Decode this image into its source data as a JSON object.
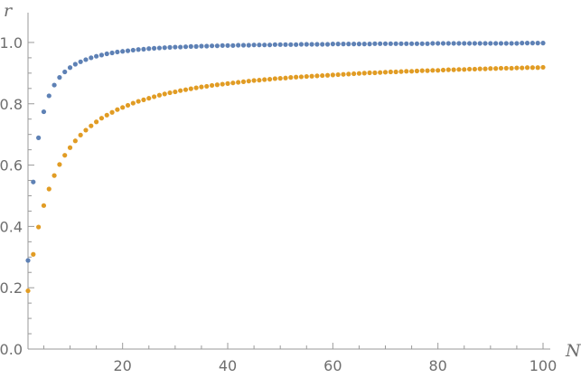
{
  "chart_data": {
    "type": "scatter",
    "title": "",
    "xlabel": "N",
    "ylabel": "r",
    "xlim": [
      2,
      100
    ],
    "ylim": [
      0,
      1.05
    ],
    "x_ticks": [
      20,
      40,
      60,
      80,
      100
    ],
    "x_tick_labels": [
      "20",
      "40",
      "60",
      "80",
      "100"
    ],
    "y_ticks": [
      0.0,
      0.2,
      0.4,
      0.6,
      0.8,
      1.0
    ],
    "y_tick_labels": [
      "0.0",
      "0.2",
      "0.4",
      "0.6",
      "0.8",
      "1.0"
    ],
    "grid": false,
    "legend": "none",
    "series": [
      {
        "color": "#5e81b5",
        "x": [
          2,
          3,
          4,
          5,
          6,
          7,
          8,
          9,
          10,
          11,
          12,
          13,
          14,
          15,
          16,
          17,
          18,
          19,
          20,
          21,
          22,
          23,
          24,
          25,
          26,
          27,
          28,
          29,
          30,
          31,
          32,
          33,
          34,
          35,
          36,
          37,
          38,
          39,
          40,
          41,
          42,
          43,
          44,
          45,
          46,
          47,
          48,
          49,
          50,
          51,
          52,
          53,
          54,
          55,
          56,
          57,
          58,
          59,
          60,
          61,
          62,
          63,
          64,
          65,
          66,
          67,
          68,
          69,
          70,
          71,
          72,
          73,
          74,
          75,
          76,
          77,
          78,
          79,
          80,
          81,
          82,
          83,
          84,
          85,
          86,
          87,
          88,
          89,
          90,
          91,
          92,
          93,
          94,
          95,
          96,
          97,
          98,
          99,
          100
        ],
        "y": [
          0.289,
          0.545,
          0.689,
          0.774,
          0.826,
          0.861,
          0.886,
          0.904,
          0.918,
          0.929,
          0.937,
          0.944,
          0.95,
          0.955,
          0.959,
          0.963,
          0.966,
          0.969,
          0.971,
          0.973,
          0.975,
          0.977,
          0.978,
          0.98,
          0.981,
          0.982,
          0.983,
          0.984,
          0.985,
          0.985,
          0.986,
          0.987,
          0.987,
          0.988,
          0.988,
          0.989,
          0.989,
          0.99,
          0.99,
          0.99,
          0.991,
          0.991,
          0.991,
          0.992,
          0.992,
          0.992,
          0.992,
          0.993,
          0.993,
          0.993,
          0.993,
          0.993,
          0.994,
          0.994,
          0.994,
          0.994,
          0.994,
          0.994,
          0.995,
          0.995,
          0.995,
          0.995,
          0.995,
          0.995,
          0.995,
          0.995,
          0.996,
          0.996,
          0.996,
          0.996,
          0.996,
          0.996,
          0.996,
          0.996,
          0.996,
          0.996,
          0.996,
          0.997,
          0.997,
          0.997,
          0.997,
          0.997,
          0.997,
          0.997,
          0.997,
          0.997,
          0.997,
          0.997,
          0.997,
          0.997,
          0.997,
          0.997,
          0.997,
          0.997,
          0.998,
          0.998,
          0.998,
          0.998,
          0.998
        ]
      },
      {
        "color": "#e19c24",
        "x": [
          2,
          3,
          4,
          5,
          6,
          7,
          8,
          9,
          10,
          11,
          12,
          13,
          14,
          15,
          16,
          17,
          18,
          19,
          20,
          21,
          22,
          23,
          24,
          25,
          26,
          27,
          28,
          29,
          30,
          31,
          32,
          33,
          34,
          35,
          36,
          37,
          38,
          39,
          40,
          41,
          42,
          43,
          44,
          45,
          46,
          47,
          48,
          49,
          50,
          51,
          52,
          53,
          54,
          55,
          56,
          57,
          58,
          59,
          60,
          61,
          62,
          63,
          64,
          65,
          66,
          67,
          68,
          69,
          70,
          71,
          72,
          73,
          74,
          75,
          76,
          77,
          78,
          79,
          80,
          81,
          82,
          83,
          84,
          85,
          86,
          87,
          88,
          89,
          90,
          91,
          92,
          93,
          94,
          95,
          96,
          97,
          98,
          99,
          100
        ],
        "y": [
          0.19,
          0.309,
          0.398,
          0.468,
          0.522,
          0.566,
          0.602,
          0.632,
          0.657,
          0.679,
          0.698,
          0.714,
          0.728,
          0.741,
          0.753,
          0.763,
          0.772,
          0.781,
          0.788,
          0.795,
          0.802,
          0.808,
          0.813,
          0.818,
          0.823,
          0.828,
          0.832,
          0.836,
          0.839,
          0.843,
          0.846,
          0.849,
          0.852,
          0.855,
          0.857,
          0.86,
          0.862,
          0.864,
          0.866,
          0.868,
          0.87,
          0.872,
          0.874,
          0.876,
          0.877,
          0.879,
          0.88,
          0.882,
          0.883,
          0.884,
          0.886,
          0.887,
          0.888,
          0.889,
          0.89,
          0.891,
          0.892,
          0.893,
          0.894,
          0.895,
          0.896,
          0.897,
          0.898,
          0.899,
          0.9,
          0.901,
          0.901,
          0.902,
          0.903,
          0.904,
          0.904,
          0.905,
          0.906,
          0.906,
          0.907,
          0.908,
          0.908,
          0.909,
          0.909,
          0.91,
          0.911,
          0.911,
          0.912,
          0.912,
          0.913,
          0.913,
          0.914,
          0.914,
          0.915,
          0.915,
          0.916,
          0.916,
          0.916,
          0.917,
          0.917,
          0.918,
          0.918,
          0.918,
          0.919
        ]
      }
    ]
  }
}
